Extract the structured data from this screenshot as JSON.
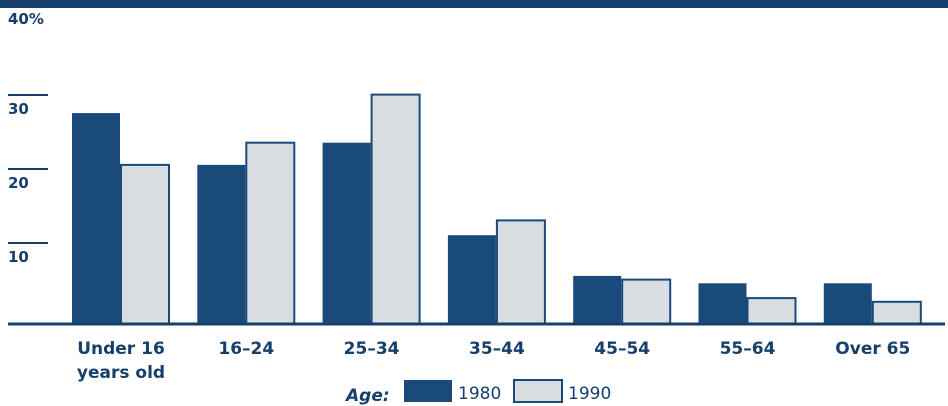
{
  "chart_data": {
    "type": "bar",
    "categories": [
      "Under 16 years old",
      "16–24",
      "25–34",
      "35–44",
      "45–54",
      "55–64",
      "Over 65"
    ],
    "category_lines": [
      [
        "Under 16",
        "years old"
      ],
      [
        "16–24"
      ],
      [
        "25–34"
      ],
      [
        "35–44"
      ],
      [
        "45–54"
      ],
      [
        "55–64"
      ],
      [
        "Over 65"
      ]
    ],
    "series": [
      {
        "name": "1980",
        "values": [
          28.5,
          21.5,
          24.5,
          12,
          6.5,
          5.5,
          5.5
        ],
        "color": "#1a4a7a"
      },
      {
        "name": "1990",
        "values": [
          21.5,
          24.5,
          31,
          14,
          6,
          3.5,
          3
        ],
        "color": "#d8dde2",
        "edge": "#1a4a7a"
      }
    ],
    "y_ticks": [
      10,
      20,
      30,
      40
    ],
    "y_tick_labels": [
      "10",
      "20",
      "30",
      "40%"
    ],
    "ylim": [
      0,
      40
    ],
    "legend": {
      "title": "Age:",
      "placement": "bottom"
    },
    "grid": false,
    "colors": {
      "axis": "#16406b",
      "text": "#16406b"
    }
  }
}
